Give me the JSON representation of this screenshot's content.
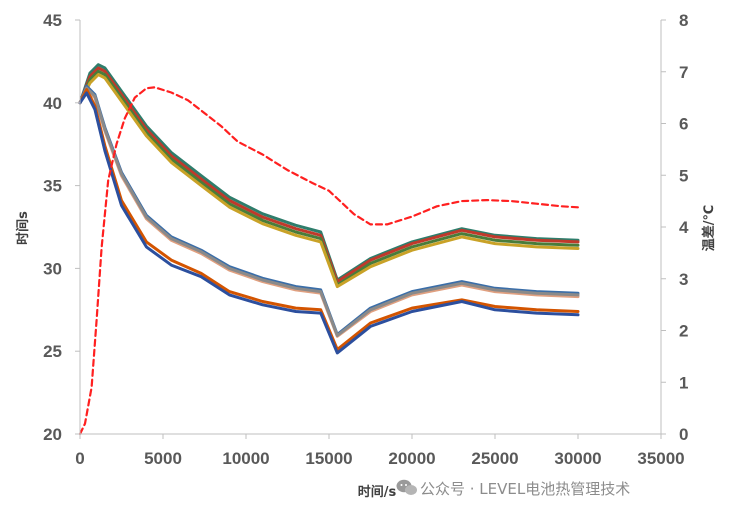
{
  "watermark": "公众号 · LEVEL电池热管理技术",
  "chart_data": {
    "type": "line",
    "title": "",
    "xlabel": "时间/s",
    "ylabel": "时间s",
    "y2label": "温差/℃",
    "xlim": [
      0,
      35000
    ],
    "ylim": [
      20,
      45
    ],
    "y2lim": [
      0,
      8
    ],
    "xticks": [
      "0",
      "5000",
      "10000",
      "15000",
      "20000",
      "25000",
      "30000",
      "35000"
    ],
    "yticks": [
      "20",
      "25",
      "30",
      "35",
      "40",
      "45"
    ],
    "y2ticks": [
      "0",
      "1",
      "2",
      "3",
      "4",
      "5",
      "6",
      "7",
      "8"
    ],
    "grid": false,
    "legend": "none",
    "series": [
      {
        "axis": "left",
        "color": "#2e7d6b",
        "dash": false,
        "x": [
          0,
          600,
          1100,
          1500,
          2500,
          4000,
          5500,
          7300,
          9000,
          11000,
          13000,
          14500,
          15500,
          17500,
          20000,
          23000,
          25000,
          27500,
          30000
        ],
        "y": [
          40,
          41.8,
          42.3,
          42.1,
          40.7,
          38.6,
          37.0,
          35.6,
          34.3,
          33.3,
          32.6,
          32.2,
          29.3,
          30.6,
          31.6,
          32.4,
          32.0,
          31.8,
          31.7
        ]
      },
      {
        "axis": "left",
        "color": "#c0392b",
        "dash": false,
        "x": [
          0,
          600,
          1100,
          1500,
          2500,
          4000,
          5500,
          7300,
          9000,
          11000,
          13000,
          14500,
          15500,
          17500,
          20000,
          23000,
          25000,
          27500,
          30000
        ],
        "y": [
          40,
          41.6,
          42.1,
          41.9,
          40.5,
          38.4,
          36.8,
          35.4,
          34.1,
          33.1,
          32.4,
          32.0,
          29.2,
          30.5,
          31.5,
          32.3,
          31.9,
          31.7,
          31.6
        ]
      },
      {
        "axis": "left",
        "color": "#4a7c3a",
        "dash": false,
        "x": [
          0,
          600,
          1100,
          1500,
          2500,
          4000,
          5500,
          7300,
          9000,
          11000,
          13000,
          14500,
          15500,
          17500,
          20000,
          23000,
          25000,
          27500,
          30000
        ],
        "y": [
          40,
          41.4,
          41.9,
          41.7,
          40.3,
          38.2,
          36.6,
          35.2,
          33.9,
          32.9,
          32.2,
          31.8,
          29.0,
          30.3,
          31.3,
          32.1,
          31.7,
          31.5,
          31.4
        ]
      },
      {
        "axis": "left",
        "color": "#c9a227",
        "dash": false,
        "x": [
          0,
          600,
          1100,
          1500,
          2500,
          4000,
          5500,
          7300,
          9000,
          11000,
          13000,
          14500,
          15500,
          17500,
          20000,
          23000,
          25000,
          27500,
          30000
        ],
        "y": [
          40,
          41.2,
          41.7,
          41.5,
          40.1,
          38.0,
          36.4,
          35.0,
          33.7,
          32.7,
          32.0,
          31.6,
          28.9,
          30.1,
          31.1,
          31.9,
          31.5,
          31.3,
          31.2
        ]
      },
      {
        "axis": "left",
        "color": "#3b6ea8",
        "dash": false,
        "x": [
          0,
          400,
          900,
          1500,
          2500,
          4000,
          5500,
          7300,
          9000,
          11000,
          13000,
          14500,
          15500,
          17500,
          20000,
          23000,
          25000,
          27500,
          30000
        ],
        "y": [
          40,
          41.0,
          40.5,
          38.5,
          35.8,
          33.2,
          31.9,
          31.1,
          30.1,
          29.4,
          28.9,
          28.7,
          26.0,
          27.6,
          28.6,
          29.2,
          28.8,
          28.6,
          28.5
        ]
      },
      {
        "axis": "left",
        "color": "#e0a080",
        "dash": false,
        "x": [
          0,
          400,
          900,
          1500,
          2500,
          4000,
          5500,
          7300,
          9000,
          11000,
          13000,
          14500,
          15500,
          17500,
          20000,
          23000,
          25000,
          27500,
          30000
        ],
        "y": [
          40,
          40.8,
          40.3,
          38.3,
          35.6,
          33.0,
          31.7,
          30.9,
          29.9,
          29.2,
          28.7,
          28.5,
          25.9,
          27.4,
          28.4,
          29.0,
          28.6,
          28.4,
          28.3
        ]
      },
      {
        "axis": "left",
        "color": "#8a8a8a",
        "dash": false,
        "x": [
          0,
          400,
          900,
          1500,
          2500,
          4000,
          5500,
          7300,
          9000,
          11000,
          13000,
          14500,
          15500,
          17500,
          20000,
          23000,
          25000,
          27500,
          30000
        ],
        "y": [
          40,
          40.9,
          40.4,
          38.4,
          35.7,
          33.1,
          31.8,
          31.0,
          30.0,
          29.3,
          28.8,
          28.6,
          25.95,
          27.5,
          28.5,
          29.1,
          28.7,
          28.5,
          28.4
        ]
      },
      {
        "axis": "left",
        "color": "#d35400",
        "dash": false,
        "x": [
          0,
          400,
          900,
          1500,
          2500,
          4000,
          5500,
          7300,
          9000,
          11000,
          13000,
          14500,
          15500,
          17500,
          20000,
          23000,
          25000,
          27500,
          30000
        ],
        "y": [
          40,
          40.8,
          39.8,
          37.4,
          34.1,
          31.6,
          30.5,
          29.7,
          28.6,
          28.0,
          27.6,
          27.5,
          25.1,
          26.7,
          27.6,
          28.1,
          27.7,
          27.5,
          27.4
        ]
      },
      {
        "axis": "left",
        "color": "#2c4f9e",
        "dash": false,
        "x": [
          0,
          400,
          900,
          1500,
          2500,
          4000,
          5500,
          7300,
          9000,
          11000,
          13000,
          14500,
          15500,
          17500,
          20000,
          23000,
          25000,
          27500,
          30000
        ],
        "y": [
          40,
          40.6,
          39.6,
          37.1,
          33.8,
          31.3,
          30.2,
          29.5,
          28.4,
          27.8,
          27.4,
          27.3,
          24.9,
          26.5,
          27.4,
          28.0,
          27.5,
          27.3,
          27.2
        ]
      },
      {
        "axis": "right",
        "color": "#ff2020",
        "dash": true,
        "x": [
          0,
          300,
          700,
          1000,
          1300,
          1700,
          2200,
          2700,
          3300,
          4000,
          4500,
          5500,
          6500,
          7500,
          8500,
          9500,
          11000,
          12500,
          14000,
          15000,
          15500,
          16500,
          17500,
          18500,
          20000,
          21500,
          23000,
          24500,
          26000,
          27500,
          29000,
          30000
        ],
        "y": [
          0,
          0.2,
          0.9,
          2.2,
          3.6,
          4.9,
          5.6,
          6.1,
          6.5,
          6.68,
          6.7,
          6.6,
          6.45,
          6.2,
          5.95,
          5.65,
          5.4,
          5.1,
          4.85,
          4.7,
          4.55,
          4.25,
          4.05,
          4.05,
          4.2,
          4.4,
          4.5,
          4.52,
          4.5,
          4.45,
          4.4,
          4.38
        ]
      }
    ]
  }
}
